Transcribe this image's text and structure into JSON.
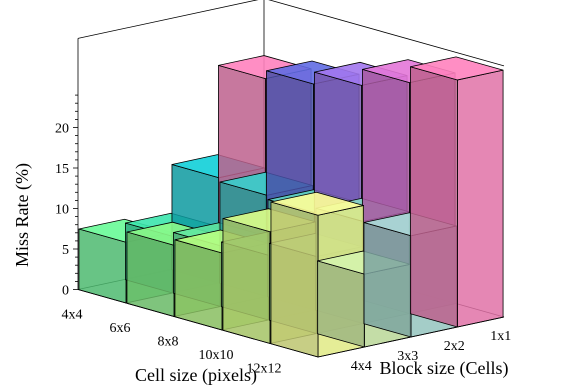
{
  "chart_data": {
    "type": "bar3d",
    "title": "",
    "zlabel": "Miss Rate (%)",
    "xlabel": "Block size (Cells)",
    "ylabel": "Cell size (pixels)",
    "block_sizes": [
      "4x4",
      "3x3",
      "2x2",
      "1x1"
    ],
    "cell_sizes": [
      "12x12",
      "10x10",
      "8x8",
      "6x6",
      "4x4"
    ],
    "zlim": [
      0,
      25
    ],
    "z_ticks": [
      0,
      5,
      10,
      15,
      20
    ],
    "grid": false,
    "series": [
      {
        "cell_size": "12x12",
        "values": [
          17.5,
          9.0,
          12.5,
          30.5
        ]
      },
      {
        "cell_size": "10x10",
        "values": [
          13.8,
          9.5,
          12.6,
          28.5
        ]
      },
      {
        "cell_size": "8x8",
        "values": [
          9.5,
          8.0,
          12.0,
          26.5
        ]
      },
      {
        "cell_size": "6x6",
        "values": [
          8.8,
          7.5,
          12.5,
          25.0
        ]
      },
      {
        "cell_size": "4x4",
        "values": [
          7.5,
          7.0,
          13.0,
          24.0
        ]
      }
    ]
  }
}
